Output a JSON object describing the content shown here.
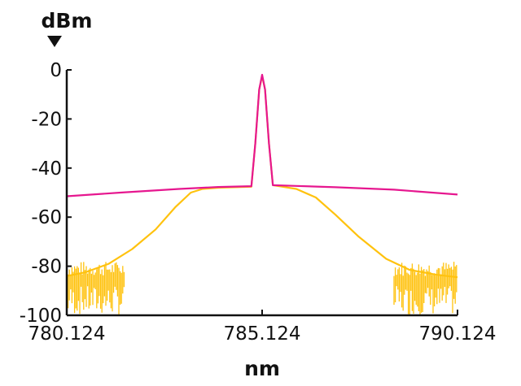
{
  "chart_data": {
    "type": "line",
    "ylabel": "dBm",
    "xlabel": "nm",
    "xlim": [
      780.124,
      790.124
    ],
    "ylim": [
      -100,
      0
    ],
    "x_ticks": [
      "780.124",
      "785.124",
      "790.124"
    ],
    "y_ticks": [
      "0",
      "-20",
      "-40",
      "-60",
      "-80",
      "-100"
    ],
    "grid": false,
    "colors": {
      "series_a": "#e6178f",
      "series_b": "#ffc20e"
    },
    "series": [
      {
        "color": "#e6178f",
        "x": [
          780.124,
          781.5,
          783.0,
          784.0,
          784.85,
          784.95,
          785.05,
          785.124,
          785.2,
          785.3,
          785.4,
          786.0,
          787.0,
          788.5,
          790.124
        ],
        "y": [
          -51.5,
          -50.0,
          -48.5,
          -47.7,
          -47.4,
          -30.0,
          -8.0,
          -2.0,
          -8.0,
          -30.0,
          -47.0,
          -47.3,
          -47.8,
          -48.8,
          -50.8
        ]
      },
      {
        "color": "#ffc20e",
        "x": [
          780.124,
          780.6,
          781.2,
          781.8,
          782.4,
          782.9,
          783.3,
          783.6,
          784.0,
          784.85,
          784.95,
          785.05,
          785.124,
          785.2,
          785.3,
          785.4,
          785.6,
          786.0,
          786.5,
          787.0,
          787.6,
          788.3,
          788.9,
          789.6,
          790.124
        ],
        "y": [
          -84.0,
          -82.5,
          -79.0,
          -73.0,
          -65.0,
          -56.0,
          -50.0,
          -48.5,
          -48.0,
          -47.6,
          -30.0,
          -8.0,
          -2.5,
          -8.0,
          -30.0,
          -47.0,
          -47.5,
          -48.5,
          -52.0,
          -59.0,
          -68.0,
          -77.0,
          -81.5,
          -83.5,
          -84.5
        ]
      }
    ],
    "noise_floor_regions": [
      {
        "x": [
          780.124,
          781.6
        ],
        "y_range": [
          -100,
          -80
        ]
      },
      {
        "x": [
          788.5,
          790.124
        ],
        "y_range": [
          -100,
          -80
        ]
      }
    ]
  }
}
